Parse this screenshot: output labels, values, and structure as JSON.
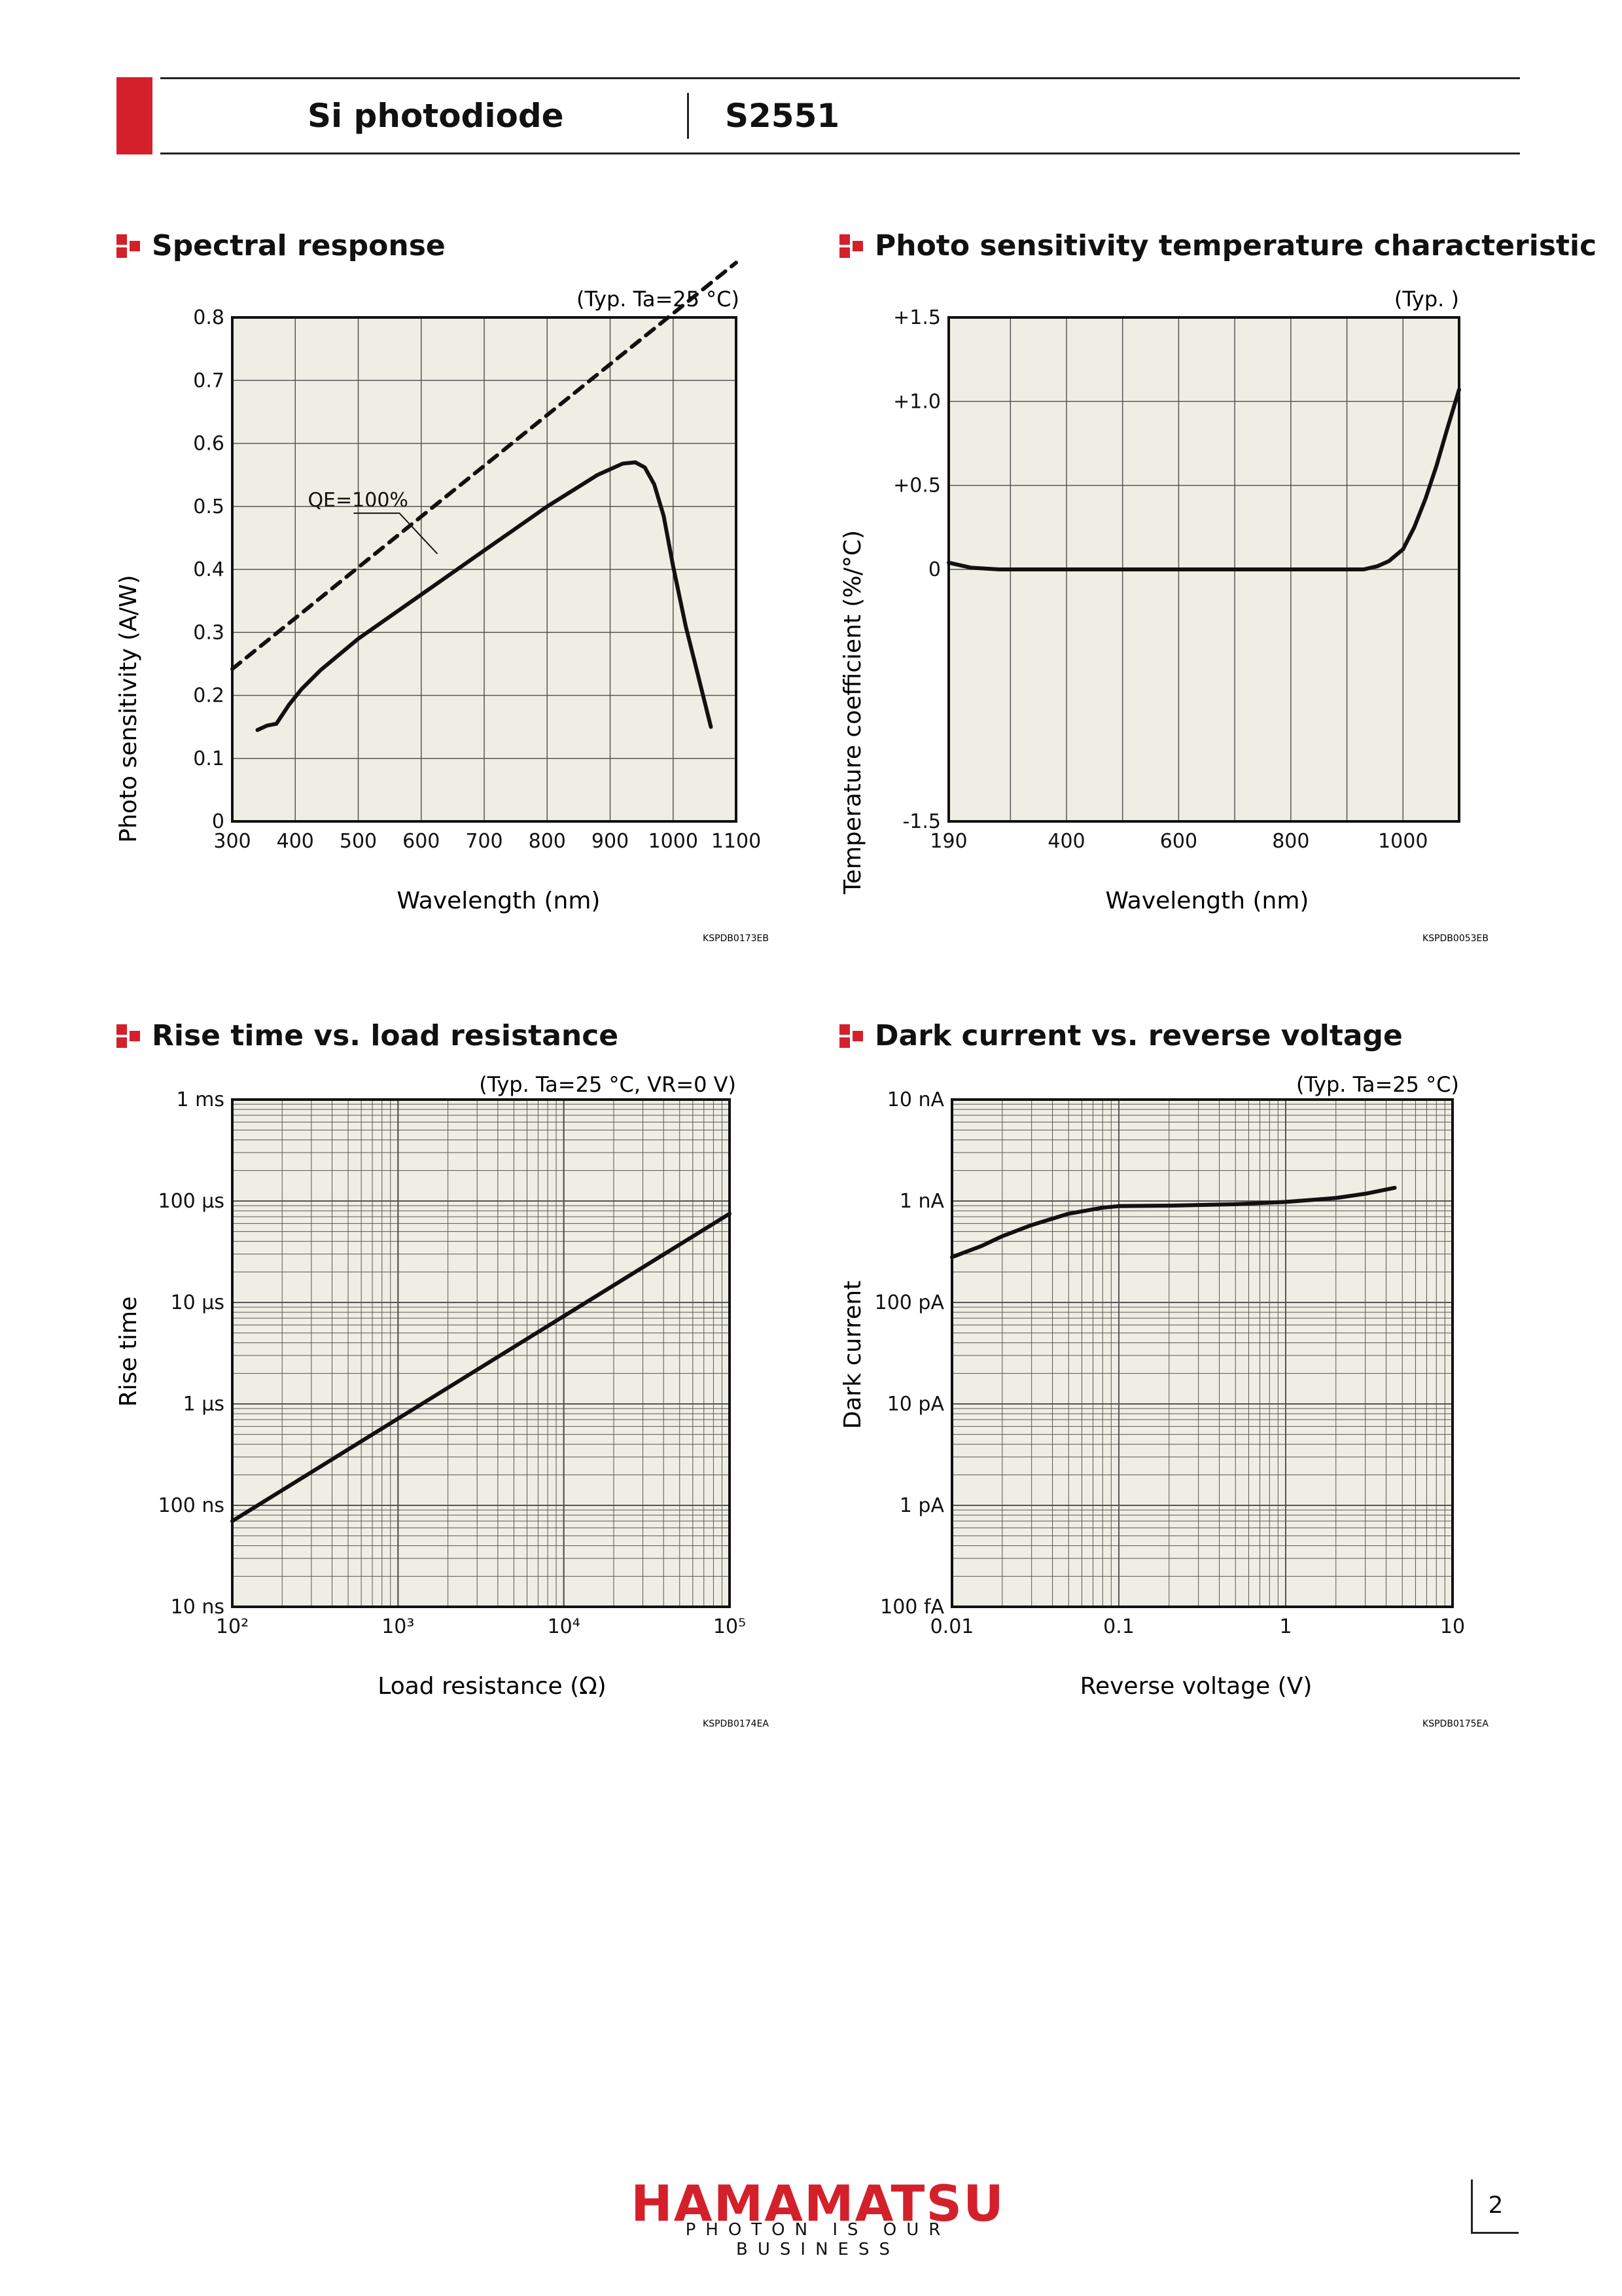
{
  "header": {
    "product_type": "Si photodiode",
    "model": "S2551"
  },
  "sections": {
    "spectral": {
      "title": "Spectral response",
      "code": "KSPDB0173EB"
    },
    "tempchar": {
      "title": "Photo sensitivity temperature characteristic",
      "code": "KSPDB0053EB"
    },
    "risetime": {
      "title": "Rise time vs. load resistance",
      "code": "KSPDB0174EA"
    },
    "dark": {
      "title": "Dark current vs. reverse voltage",
      "code": "KSPDB0175EA"
    }
  },
  "footer": {
    "brand": "HAMAMATSU",
    "tagline": "PHOTON IS OUR BUSINESS",
    "page": "2"
  },
  "colors": {
    "accent": "#d4202a",
    "plot_bg": "#efeee4",
    "grid": "#555555"
  },
  "chart_data": [
    {
      "type": "line",
      "title": "",
      "condition": "(Typ. Ta=25 °C)",
      "xlabel": "Wavelength (nm)",
      "ylabel": "Photo sensitivity (A/W)",
      "xlim": [
        300,
        1100
      ],
      "ylim": [
        0,
        0.8
      ],
      "xticks": [
        300,
        400,
        500,
        600,
        700,
        800,
        900,
        1000,
        1100
      ],
      "yticks": [
        0,
        0.1,
        0.2,
        0.3,
        0.4,
        0.5,
        0.6,
        0.7,
        0.8
      ],
      "xtick_labels": [
        "300",
        "400",
        "500",
        "600",
        "700",
        "800",
        "900",
        "1000",
        "1100"
      ],
      "ytick_labels": [
        "0",
        "0.1",
        "0.2",
        "0.3",
        "0.4",
        "0.5",
        "0.6",
        "0.7",
        "0.8"
      ],
      "grid": true,
      "annotations": [
        {
          "text": "QE=100%",
          "x": 555,
          "y": 0.51
        }
      ],
      "series": [
        {
          "style": "solid",
          "x": [
            340,
            355,
            370,
            390,
            410,
            440,
            500,
            600,
            700,
            800,
            880,
            920,
            940,
            955,
            970,
            985,
            1000,
            1020,
            1040,
            1060
          ],
          "y": [
            0.145,
            0.152,
            0.155,
            0.185,
            0.21,
            0.24,
            0.29,
            0.36,
            0.43,
            0.5,
            0.55,
            0.568,
            0.57,
            0.562,
            0.535,
            0.485,
            0.405,
            0.31,
            0.23,
            0.15
          ]
        },
        {
          "style": "dashed",
          "x": [
            300,
            1100
          ],
          "y": [
            0.242,
            0.887
          ]
        }
      ]
    },
    {
      "type": "line",
      "title": "",
      "condition": "(Typ. )",
      "xlabel": "Wavelength (nm)",
      "ylabel": "Temperature coefficient (%/°C)",
      "xlim": [
        190,
        1100
      ],
      "ylim": [
        -1.5,
        1.5
      ],
      "xticks": [
        190,
        400,
        600,
        800,
        1000
      ],
      "xtick_labels": [
        "190",
        "400",
        "600",
        "800",
        "1000"
      ],
      "yticks": [
        -1.5,
        0,
        0.5,
        1.0,
        1.5
      ],
      "ytick_labels": [
        "-1.5",
        "0",
        "+0.5",
        "+1.0",
        "+1.5"
      ],
      "ygrid": [
        -1.5,
        0,
        0.5,
        1.0,
        1.5
      ],
      "grid": true,
      "series": [
        {
          "style": "solid",
          "x": [
            190,
            230,
            280,
            400,
            600,
            800,
            930,
            955,
            975,
            1000,
            1020,
            1040,
            1060,
            1080,
            1100
          ],
          "y": [
            0.04,
            0.01,
            0.0,
            0.0,
            0.0,
            0.0,
            0.0,
            0.02,
            0.05,
            0.12,
            0.25,
            0.42,
            0.62,
            0.85,
            1.07
          ]
        }
      ]
    },
    {
      "type": "line",
      "title": "",
      "condition": "(Typ. Ta=25 °C, VR=0 V)",
      "xlabel": "Load resistance (Ω)",
      "ylabel": "Rise time",
      "xscale": "log",
      "yscale": "log",
      "xlim": [
        100,
        100000
      ],
      "ylim": [
        1e-08,
        0.001
      ],
      "xtick_labels": [
        "10²",
        "10³",
        "10⁴",
        "10⁵"
      ],
      "ytick_labels": [
        "10 ns",
        "100 ns",
        "1 µs",
        "10 µs",
        "100 µs",
        "1 ms"
      ],
      "grid": true,
      "series": [
        {
          "style": "solid",
          "x": [
            100,
            100000
          ],
          "y": [
            7e-08,
            7.5e-05
          ]
        }
      ]
    },
    {
      "type": "line",
      "title": "",
      "condition": "(Typ. Ta=25 °C)",
      "xlabel": "Reverse voltage (V)",
      "ylabel": "Dark current",
      "xscale": "log",
      "yscale": "log",
      "xlim": [
        0.01,
        10
      ],
      "ylim": [
        1e-13,
        1e-08
      ],
      "xtick_labels": [
        "0.01",
        "0.1",
        "1",
        "10"
      ],
      "ytick_labels": [
        "100 fA",
        "1 pA",
        "10 pA",
        "100 pA",
        "1 nA",
        "10 nA"
      ],
      "grid": true,
      "series": [
        {
          "style": "solid",
          "x": [
            0.01,
            0.015,
            0.02,
            0.03,
            0.05,
            0.08,
            0.1,
            0.2,
            0.5,
            1,
            2,
            3,
            4.5
          ],
          "y": [
            2.8e-10,
            3.6e-10,
            4.5e-10,
            5.8e-10,
            7.5e-10,
            8.6e-10,
            8.9e-10,
            9e-10,
            9.3e-10,
            9.8e-10,
            1.07e-09,
            1.18e-09,
            1.35e-09
          ]
        }
      ]
    }
  ]
}
